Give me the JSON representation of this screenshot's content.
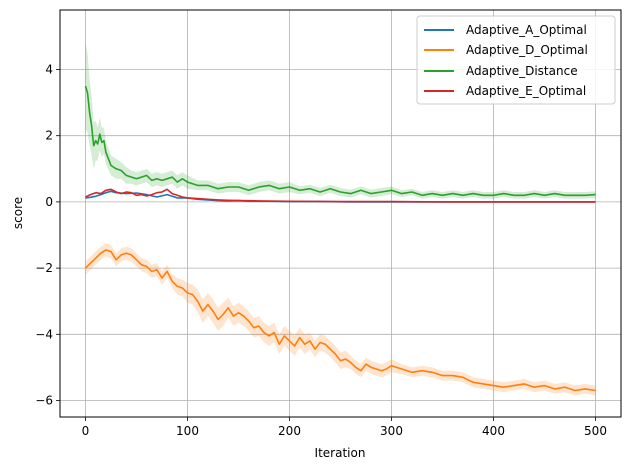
{
  "chart_data": {
    "type": "line",
    "title": "",
    "xlabel": "Iteration",
    "ylabel": "score",
    "xlim": [
      -25,
      525
    ],
    "ylim": [
      -6.5,
      5.8
    ],
    "x_ticks": [
      0,
      100,
      200,
      300,
      400,
      500
    ],
    "y_ticks": [
      -6,
      -4,
      -2,
      0,
      2,
      4
    ],
    "grid": true,
    "legend_position": "top-right",
    "series": [
      {
        "name": "Adaptive_A_Optimal",
        "color": "#1f77b4",
        "band": false,
        "x": [
          0,
          5,
          10,
          15,
          20,
          25,
          30,
          40,
          50,
          60,
          70,
          80,
          90,
          100,
          110,
          120,
          130,
          140,
          150,
          160,
          180,
          200,
          230,
          260,
          300,
          350,
          400,
          450,
          500
        ],
        "y": [
          0.12,
          0.14,
          0.17,
          0.22,
          0.28,
          0.32,
          0.28,
          0.25,
          0.27,
          0.22,
          0.15,
          0.22,
          0.12,
          0.12,
          0.08,
          0.06,
          0.04,
          0.03,
          0.04,
          0.02,
          0.02,
          0.01,
          0.01,
          0.0,
          0.0,
          0.0,
          0.0,
          0.0,
          0.0
        ]
      },
      {
        "name": "Adaptive_D_Optimal",
        "color": "#ff7f0e",
        "band": true,
        "x": [
          0,
          5,
          10,
          15,
          20,
          25,
          30,
          35,
          40,
          45,
          50,
          55,
          60,
          65,
          70,
          75,
          80,
          85,
          90,
          95,
          100,
          105,
          110,
          115,
          120,
          125,
          130,
          135,
          140,
          145,
          150,
          155,
          160,
          165,
          170,
          175,
          180,
          185,
          190,
          195,
          200,
          205,
          210,
          215,
          220,
          225,
          230,
          235,
          240,
          245,
          250,
          255,
          260,
          265,
          270,
          275,
          280,
          285,
          290,
          295,
          300,
          310,
          320,
          330,
          340,
          350,
          360,
          370,
          380,
          390,
          400,
          410,
          420,
          430,
          440,
          450,
          460,
          470,
          480,
          490,
          500
        ],
        "y": [
          -2.0,
          -1.85,
          -1.7,
          -1.55,
          -1.45,
          -1.5,
          -1.75,
          -1.6,
          -1.55,
          -1.6,
          -1.75,
          -1.9,
          -1.95,
          -2.1,
          -2.05,
          -2.3,
          -2.1,
          -2.4,
          -2.55,
          -2.6,
          -2.75,
          -2.8,
          -3.0,
          -3.3,
          -3.1,
          -3.3,
          -3.55,
          -3.4,
          -3.2,
          -3.45,
          -3.35,
          -3.45,
          -3.6,
          -3.8,
          -3.75,
          -3.95,
          -4.05,
          -3.95,
          -4.3,
          -4.05,
          -4.2,
          -4.35,
          -4.1,
          -4.3,
          -4.2,
          -4.45,
          -4.25,
          -4.3,
          -4.45,
          -4.6,
          -4.8,
          -4.75,
          -4.85,
          -5.0,
          -5.1,
          -4.9,
          -5.0,
          -5.05,
          -5.1,
          -5.05,
          -4.95,
          -5.05,
          -5.15,
          -5.1,
          -5.15,
          -5.25,
          -5.25,
          -5.3,
          -5.45,
          -5.5,
          -5.55,
          -5.6,
          -5.55,
          -5.5,
          -5.6,
          -5.55,
          -5.65,
          -5.6,
          -5.7,
          -5.65,
          -5.7
        ],
        "band_width": [
          0.2,
          0.2,
          0.2,
          0.2,
          0.2,
          0.2,
          0.2,
          0.2,
          0.2,
          0.2,
          0.2,
          0.2,
          0.2,
          0.2,
          0.2,
          0.2,
          0.2,
          0.2,
          0.25,
          0.25,
          0.3,
          0.3,
          0.35,
          0.35,
          0.35,
          0.35,
          0.35,
          0.35,
          0.3,
          0.3,
          0.3,
          0.3,
          0.3,
          0.3,
          0.3,
          0.3,
          0.3,
          0.3,
          0.3,
          0.3,
          0.3,
          0.3,
          0.3,
          0.3,
          0.25,
          0.25,
          0.25,
          0.25,
          0.25,
          0.25,
          0.25,
          0.25,
          0.2,
          0.2,
          0.2,
          0.2,
          0.2,
          0.2,
          0.2,
          0.2,
          0.2,
          0.15,
          0.15,
          0.15,
          0.15,
          0.15,
          0.15,
          0.15,
          0.15,
          0.15,
          0.15,
          0.15,
          0.15,
          0.15,
          0.15,
          0.15,
          0.15,
          0.15,
          0.15,
          0.15,
          0.15
        ]
      },
      {
        "name": "Adaptive_Distance",
        "color": "#2ca02c",
        "band": true,
        "x": [
          0,
          2,
          4,
          6,
          8,
          10,
          12,
          14,
          16,
          18,
          20,
          25,
          30,
          35,
          40,
          45,
          50,
          55,
          60,
          65,
          70,
          75,
          80,
          85,
          90,
          95,
          100,
          110,
          120,
          130,
          140,
          150,
          160,
          170,
          180,
          190,
          200,
          210,
          220,
          230,
          240,
          250,
          260,
          270,
          280,
          290,
          300,
          310,
          320,
          330,
          340,
          350,
          360,
          370,
          380,
          390,
          400,
          410,
          420,
          430,
          440,
          450,
          460,
          470,
          480,
          490,
          500
        ],
        "y": [
          3.5,
          3.3,
          2.7,
          2.3,
          1.7,
          1.85,
          1.75,
          2.05,
          1.8,
          1.85,
          1.5,
          1.1,
          1.0,
          0.95,
          0.8,
          0.75,
          0.7,
          0.75,
          0.8,
          0.65,
          0.7,
          0.65,
          0.7,
          0.75,
          0.6,
          0.7,
          0.6,
          0.5,
          0.5,
          0.4,
          0.45,
          0.45,
          0.35,
          0.45,
          0.5,
          0.4,
          0.45,
          0.35,
          0.4,
          0.3,
          0.4,
          0.3,
          0.25,
          0.35,
          0.25,
          0.3,
          0.35,
          0.25,
          0.3,
          0.2,
          0.25,
          0.2,
          0.25,
          0.2,
          0.25,
          0.2,
          0.2,
          0.25,
          0.2,
          0.2,
          0.25,
          0.2,
          0.25,
          0.2,
          0.2,
          0.2,
          0.22
        ],
        "band_width": [
          1.3,
          1.2,
          1.0,
          0.9,
          0.7,
          0.6,
          0.5,
          0.5,
          0.45,
          0.4,
          0.35,
          0.3,
          0.3,
          0.25,
          0.25,
          0.2,
          0.2,
          0.2,
          0.2,
          0.2,
          0.2,
          0.2,
          0.2,
          0.2,
          0.2,
          0.2,
          0.2,
          0.15,
          0.15,
          0.15,
          0.15,
          0.15,
          0.15,
          0.15,
          0.15,
          0.15,
          0.15,
          0.12,
          0.12,
          0.12,
          0.12,
          0.12,
          0.12,
          0.12,
          0.12,
          0.12,
          0.12,
          0.1,
          0.1,
          0.1,
          0.1,
          0.1,
          0.1,
          0.1,
          0.1,
          0.1,
          0.1,
          0.1,
          0.1,
          0.1,
          0.1,
          0.1,
          0.1,
          0.1,
          0.1,
          0.1,
          0.1
        ]
      },
      {
        "name": "Adaptive_E_Optimal",
        "color": "#d62728",
        "band": false,
        "x": [
          0,
          5,
          10,
          15,
          20,
          25,
          30,
          35,
          40,
          45,
          50,
          55,
          60,
          65,
          70,
          75,
          80,
          85,
          90,
          95,
          100,
          110,
          120,
          130,
          140,
          150,
          170,
          200,
          250,
          300,
          350,
          400,
          450,
          500
        ],
        "y": [
          0.15,
          0.22,
          0.28,
          0.25,
          0.35,
          0.38,
          0.3,
          0.25,
          0.3,
          0.28,
          0.2,
          0.22,
          0.18,
          0.22,
          0.28,
          0.3,
          0.38,
          0.25,
          0.2,
          0.15,
          0.12,
          0.1,
          0.08,
          0.06,
          0.05,
          0.04,
          0.03,
          0.02,
          0.01,
          0.01,
          0.0,
          0.0,
          0.0,
          0.0
        ]
      }
    ]
  }
}
